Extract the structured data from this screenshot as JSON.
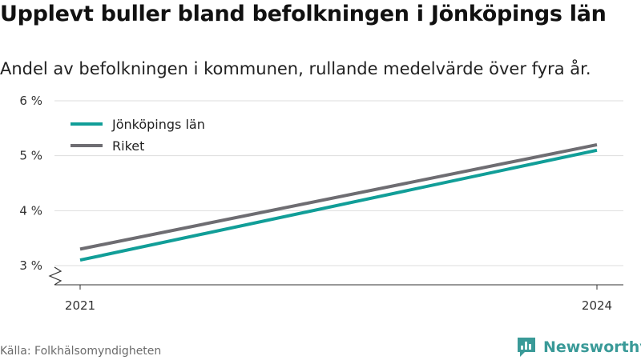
{
  "chart_data": {
    "type": "line",
    "title": "Upplevt buller bland befolkningen i Jönköpings län",
    "subtitle": "Andel av befolkningen i kommunen, rullande medelvärde över fyra år.",
    "x": [
      2021,
      2024
    ],
    "x_tick_labels": [
      "2021",
      "2024"
    ],
    "y_ticks": [
      3,
      4,
      5,
      6
    ],
    "y_tick_labels": [
      "3 %",
      "4 %",
      "5 %",
      "6 %"
    ],
    "ylim": [
      2.65,
      6
    ],
    "xlabel": "",
    "ylabel": "",
    "grid": true,
    "legend_position": "top-left",
    "series": [
      {
        "name": "Jönköpings län",
        "color": "#119e98",
        "values": [
          3.1,
          5.1
        ]
      },
      {
        "name": "Riket",
        "color": "#6e6d72",
        "values": [
          3.3,
          5.2
        ]
      }
    ]
  },
  "footer": {
    "source": "Källa: Folkhälsomyndigheten",
    "brand": "Newsworthy",
    "brand_icon": "bar-chart-logo-icon",
    "brand_color": "#3a9a98"
  }
}
